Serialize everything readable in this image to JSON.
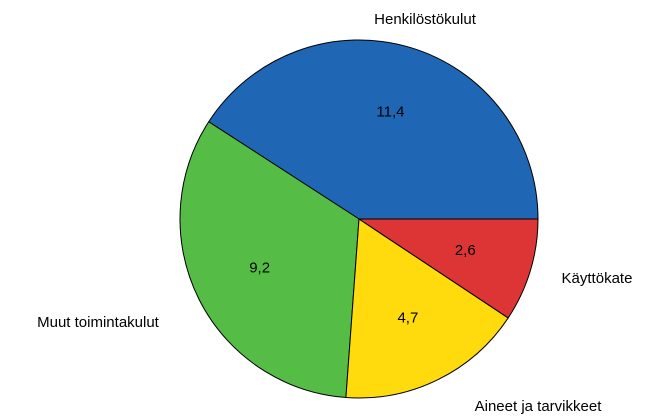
{
  "chart_data": {
    "type": "pie",
    "categories": [
      "Henkilöstökulut",
      "Muut toimintakulut",
      "Aineet ja tarvikkeet",
      "Käyttökate"
    ],
    "values": [
      11.4,
      9.2,
      4.7,
      2.6
    ],
    "value_labels": [
      "11,4",
      "9,2",
      "4,7",
      "2,6"
    ],
    "colors": [
      "#1f66b5",
      "#55bd45",
      "#ffdb0d",
      "#dd3535"
    ]
  }
}
